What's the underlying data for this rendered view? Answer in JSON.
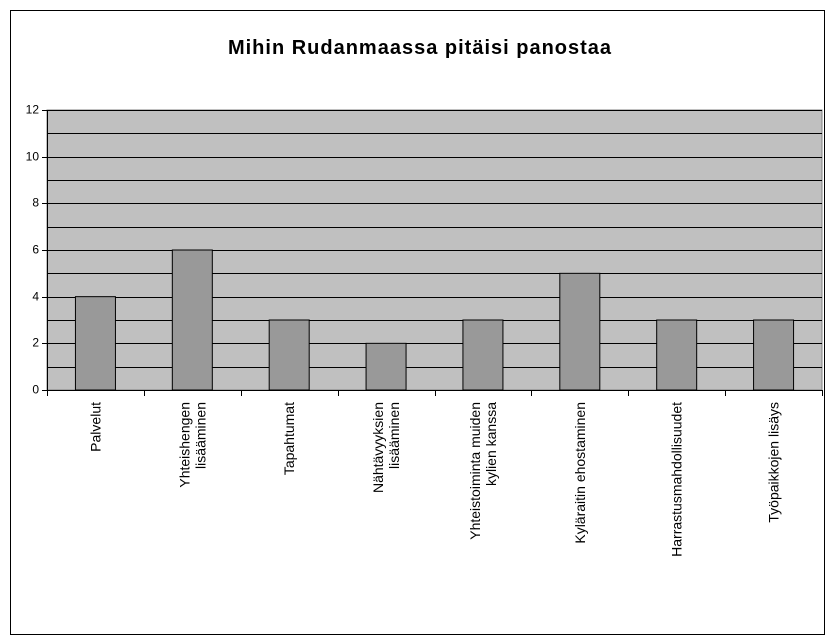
{
  "chart_data": {
    "type": "bar",
    "title": "Mihin Rudanmaassa pitäisi panostaa",
    "categories": [
      "Palvelut",
      "Yhteishengen\nlisääminen",
      "Tapahtumat",
      "Nähtävyyksien\nlisääminen",
      "Yhteistoiminta muiden\nkylien kanssa",
      "Kyläraitin ehostaminen",
      "Harrastusmahdollisuudet",
      "Työpaikkojen lisäys"
    ],
    "values": [
      4,
      6,
      3,
      2,
      3,
      5,
      3,
      3
    ],
    "color": "#999999",
    "ylim": [
      0,
      12
    ],
    "yticks": [
      0,
      2,
      4,
      6,
      8,
      10,
      12
    ],
    "minor_yticks": [
      1,
      3,
      5,
      7,
      9,
      11
    ],
    "grid": true
  }
}
